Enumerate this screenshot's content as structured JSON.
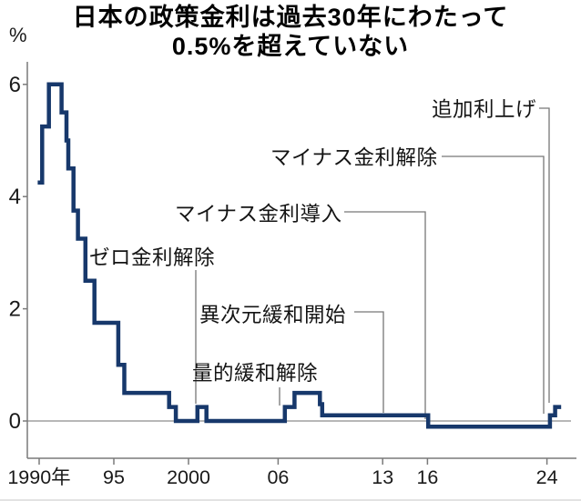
{
  "title": {
    "line1": "日本の政策金利は過去30年にわたって",
    "line2": "0.5%を超えていない"
  },
  "axes": {
    "y_unit": "%",
    "y_ticks": [
      {
        "value": 0,
        "label": "0"
      },
      {
        "value": 2,
        "label": "2"
      },
      {
        "value": 4,
        "label": "4"
      },
      {
        "value": 6,
        "label": "6"
      }
    ],
    "x_ticks": [
      {
        "year": 1990,
        "label": "1990年"
      },
      {
        "year": 1995,
        "label": "95"
      },
      {
        "year": 2000,
        "label": "2000"
      },
      {
        "year": 2006,
        "label": "06"
      },
      {
        "year": 2013,
        "label": "13"
      },
      {
        "year": 2016,
        "label": "16"
      },
      {
        "year": 2024,
        "label": "24"
      }
    ]
  },
  "chart_data": {
    "type": "line",
    "step": true,
    "title": "日本の政策金利は過去30年にわたって0.5%を超えていない",
    "ylabel": "%",
    "x_range": [
      1990,
      2025
    ],
    "ylim": [
      -0.4,
      6.6
    ],
    "grid": false,
    "line_color": "#17386b",
    "series": [
      {
        "name": "政策金利",
        "points": [
          [
            1989.9,
            4.25
          ],
          [
            1990.2,
            5.25
          ],
          [
            1990.65,
            6.0
          ],
          [
            1991.5,
            5.5
          ],
          [
            1991.83,
            5.0
          ],
          [
            1991.95,
            4.5
          ],
          [
            1992.3,
            3.75
          ],
          [
            1992.6,
            3.25
          ],
          [
            1993.1,
            2.5
          ],
          [
            1993.7,
            1.75
          ],
          [
            1995.3,
            1.0
          ],
          [
            1995.7,
            0.5
          ],
          [
            1998.7,
            0.25
          ],
          [
            1999.15,
            0.0
          ],
          [
            2000.6,
            0.25
          ],
          [
            2001.2,
            0.0
          ],
          [
            2006.45,
            0.25
          ],
          [
            2007.1,
            0.5
          ],
          [
            2008.8,
            0.3
          ],
          [
            2008.95,
            0.1
          ],
          [
            2016.05,
            -0.1
          ],
          [
            2024.2,
            0.1
          ],
          [
            2024.55,
            0.25
          ]
        ],
        "end_year": 2024.95
      }
    ],
    "annotations": [
      {
        "label": "ゼロ金利解除",
        "year": 2000.6
      },
      {
        "label": "量的緩和解除",
        "year": 2006.3
      },
      {
        "label": "異次元緩和開始",
        "year": 2013.3
      },
      {
        "label": "マイナス金利導入",
        "year": 2016.05
      },
      {
        "label": "マイナス金利解除",
        "year": 2024.2
      },
      {
        "label": "追加利上げ",
        "year": 2024.55
      }
    ]
  }
}
